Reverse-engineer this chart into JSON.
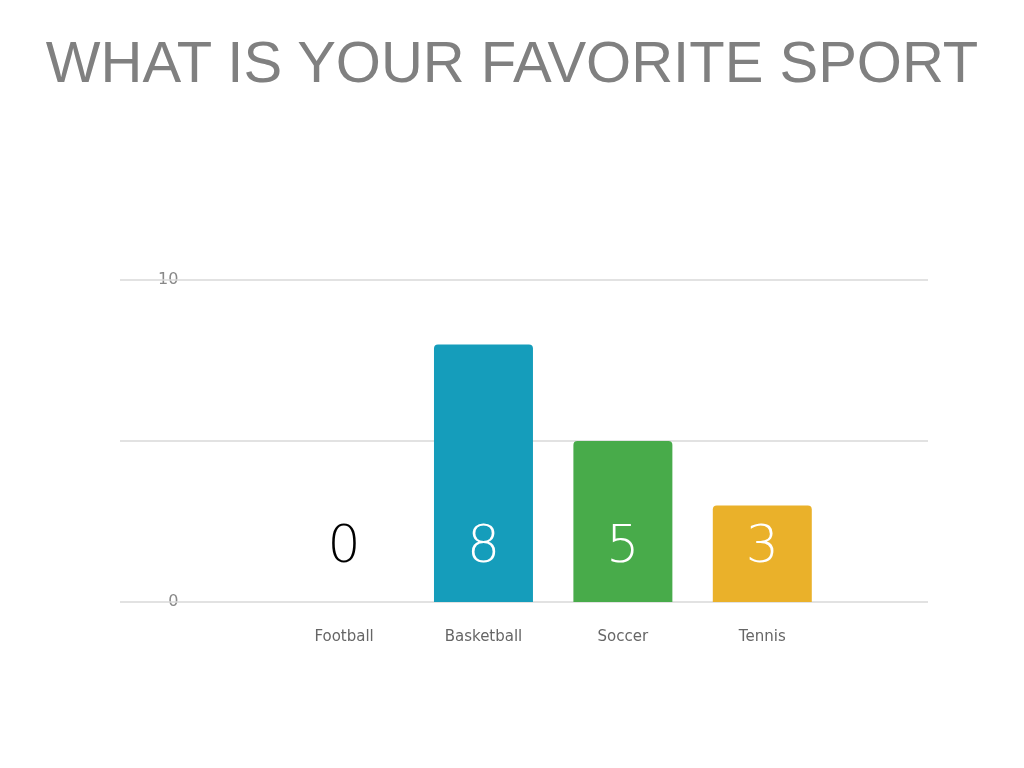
{
  "chart_data": {
    "type": "bar",
    "title": "WHAT IS YOUR FAVORITE SPORT",
    "categories": [
      "Football",
      "Basketball",
      "Soccer",
      "Tennis"
    ],
    "values": [
      0,
      8,
      5,
      3
    ],
    "colors": [
      "#000000",
      "#159dbb",
      "#48ab4a",
      "#eab12a"
    ],
    "ylim": [
      0,
      10
    ],
    "yticks": [
      0,
      {
        "value": 5,
        "label": null
      },
      10
    ],
    "grid": "y",
    "data_labels": true,
    "legend": false
  }
}
